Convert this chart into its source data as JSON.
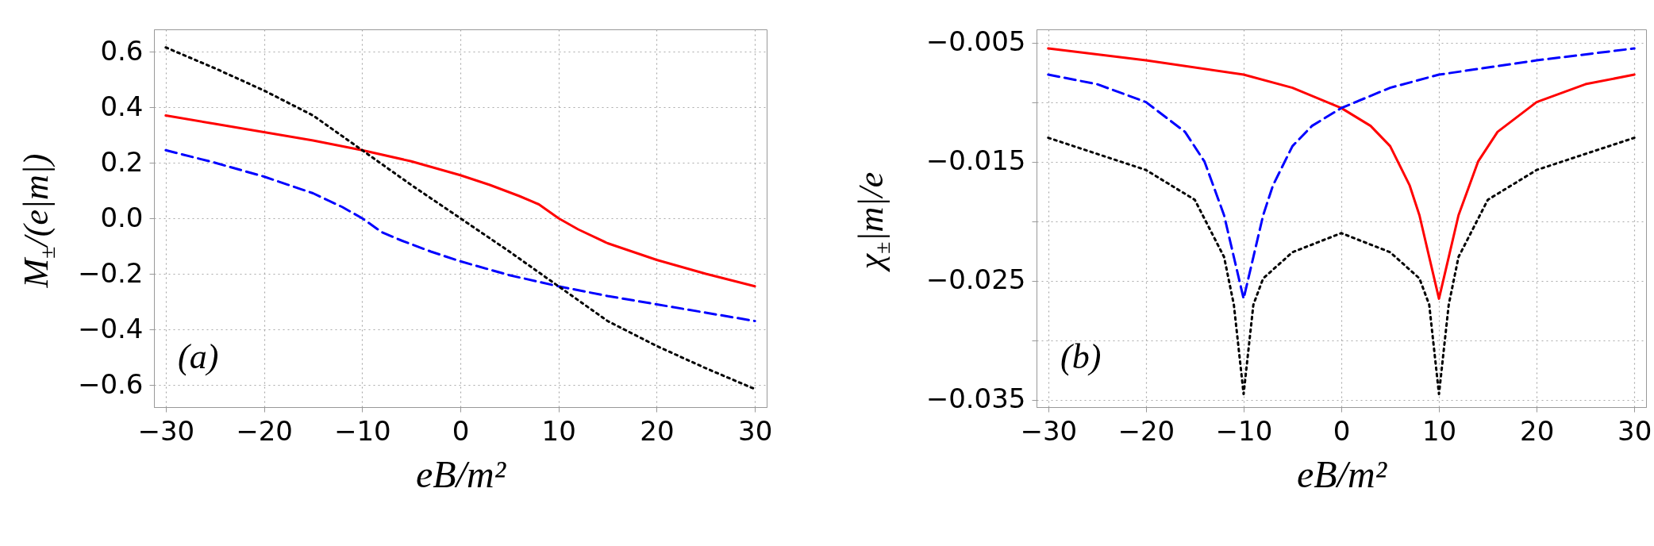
{
  "chart_data": [
    {
      "type": "line",
      "xlabel": "eB/m²",
      "ylabel": "M$_{±}$/(e|m|)",
      "annotations": [
        "(a)"
      ],
      "xlim": [
        -31.2,
        31.2
      ],
      "ylim": [
        -0.68,
        0.68
      ],
      "xticks": [
        -30,
        -20,
        -10,
        0,
        10,
        20,
        30
      ],
      "yticks": [
        -0.6,
        -0.4,
        -0.2,
        {
          "value": 0,
          "label": "0.0"
        },
        0.2,
        0.4,
        0.6
      ],
      "grid": true,
      "series": [
        {
          "color": "#ff0000",
          "line_style": "solid",
          "x": [
            -30,
            -25,
            -20,
            -15,
            -10,
            -5,
            0,
            3,
            6,
            8,
            10,
            12,
            15,
            20,
            25,
            30
          ],
          "values": [
            0.37,
            0.34,
            0.31,
            0.28,
            0.245,
            0.205,
            0.155,
            0.12,
            0.08,
            0.05,
            0.0,
            -0.04,
            -0.09,
            -0.15,
            -0.2,
            -0.245
          ]
        },
        {
          "color": "#0000ff",
          "line_style": "dashed",
          "x": [
            -30,
            -25,
            -20,
            -15,
            -12,
            -10,
            -8,
            -6,
            -3,
            0,
            5,
            10,
            15,
            20,
            25,
            30
          ],
          "values": [
            0.245,
            0.2,
            0.15,
            0.09,
            0.04,
            0.0,
            -0.05,
            -0.08,
            -0.12,
            -0.155,
            -0.205,
            -0.245,
            -0.28,
            -0.31,
            -0.34,
            -0.37
          ]
        },
        {
          "color": "#000000",
          "line_style": "dotted",
          "x": [
            -30,
            -25,
            -20,
            -15,
            -10,
            -5,
            0,
            5,
            10,
            15,
            20,
            25,
            30
          ],
          "values": [
            0.615,
            0.54,
            0.46,
            0.37,
            0.245,
            0.12,
            0,
            -0.12,
            -0.245,
            -0.37,
            -0.46,
            -0.54,
            -0.615
          ]
        }
      ]
    },
    {
      "type": "line",
      "xlabel": "eB/m²",
      "ylabel": "χ$_{±}$|m|/e",
      "annotations": [
        "(b)"
      ],
      "xlim": [
        -31.2,
        31.2
      ],
      "ylim": [
        -0.0356,
        -0.0039
      ],
      "xticks": [
        -30,
        -20,
        -10,
        0,
        10,
        20,
        30
      ],
      "yticks": [
        -0.035,
        {
          "value": -0.03,
          "label": null
        },
        -0.025,
        {
          "value": -0.02,
          "label": null
        },
        -0.015,
        {
          "value": -0.01,
          "label": null
        },
        -0.005
      ],
      "grid": true,
      "series": [
        {
          "color": "#ff0000",
          "line_style": "solid",
          "x": [
            -30,
            -20,
            -10,
            -5,
            0,
            3,
            5,
            7,
            8,
            9,
            10,
            11,
            12,
            14,
            16,
            20,
            25,
            30
          ],
          "values": [
            -0.0055,
            -0.0065,
            -0.0077,
            -0.0088,
            -0.0105,
            -0.012,
            -0.0137,
            -0.017,
            -0.0195,
            -0.023,
            -0.0265,
            -0.023,
            -0.0195,
            -0.015,
            -0.0125,
            -0.01,
            -0.0085,
            -0.0077
          ]
        },
        {
          "color": "#0000ff",
          "line_style": "dashed",
          "x": [
            -30,
            -25,
            -20,
            -16,
            -14,
            -12,
            -11,
            -10,
            -9,
            -8,
            -7,
            -5,
            -3,
            0,
            5,
            10,
            20,
            30
          ],
          "values": [
            -0.0077,
            -0.0085,
            -0.01,
            -0.0125,
            -0.015,
            -0.0195,
            -0.023,
            -0.0265,
            -0.023,
            -0.0195,
            -0.017,
            -0.0137,
            -0.012,
            -0.0105,
            -0.0088,
            -0.0077,
            -0.0065,
            -0.0055
          ]
        },
        {
          "color": "#000000",
          "line_style": "dotted",
          "x": [
            -30,
            -20,
            -15,
            -12,
            -11,
            -10,
            -9,
            -8,
            -5,
            0,
            5,
            8,
            9,
            10,
            11,
            12,
            15,
            20,
            30
          ],
          "values": [
            -0.013,
            -0.0157,
            -0.0182,
            -0.023,
            -0.027,
            -0.0345,
            -0.027,
            -0.0248,
            -0.0226,
            -0.021,
            -0.0226,
            -0.0248,
            -0.027,
            -0.0345,
            -0.027,
            -0.023,
            -0.0182,
            -0.0157,
            -0.013
          ]
        }
      ]
    }
  ]
}
